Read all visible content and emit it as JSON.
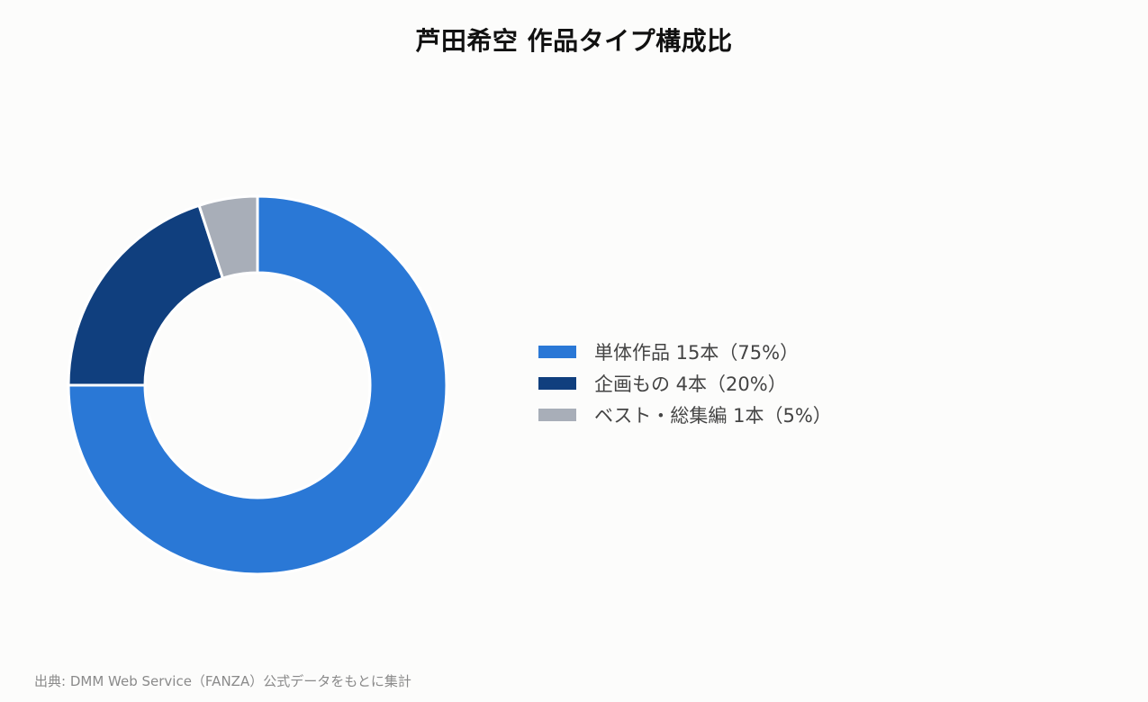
{
  "chart_data": {
    "type": "pie",
    "variant": "donut",
    "title": "芦田希空 作品タイプ構成比",
    "categories": [
      "単体作品",
      "企画もの",
      "ベスト・総集編"
    ],
    "values": [
      15,
      4,
      1
    ],
    "percentages": [
      75,
      20,
      5
    ],
    "colors": [
      "#2a78d6",
      "#103f7e",
      "#a8aeb8"
    ],
    "legend_labels": [
      "単体作品 15本（75%）",
      "企画もの 4本（20%）",
      "ベスト・総集編 1本（5%）"
    ],
    "legend_position": "right",
    "start_angle": "top",
    "direction": "clockwise"
  },
  "footer": {
    "source": "出典: DMM Web Service（FANZA）公式データをもとに集計"
  }
}
